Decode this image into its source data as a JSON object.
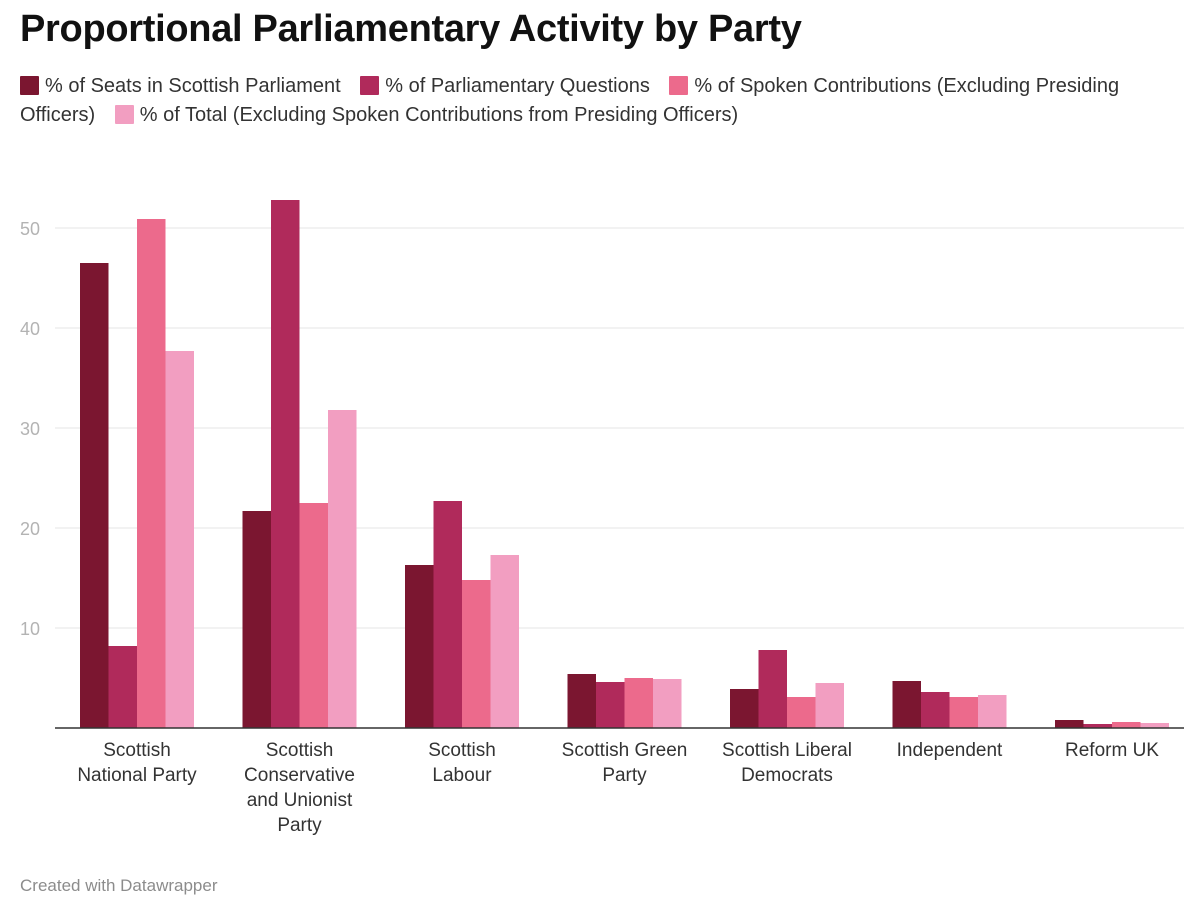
{
  "chart_data": {
    "type": "bar",
    "title": "Proportional Parliamentary Activity by Party",
    "categories": [
      "Scottish National Party",
      "Scottish Conservative and Unionist Party",
      "Scottish Labour",
      "Scottish Green Party",
      "Scottish Liberal Democrats",
      "Independent",
      "Reform UK"
    ],
    "series": [
      {
        "name": "% of Seats in Scottish Parliament",
        "color": "#7b1630",
        "values": [
          46.5,
          21.7,
          16.3,
          5.4,
          3.9,
          4.7,
          0.8
        ]
      },
      {
        "name": "% of Parliamentary Questions",
        "color": "#b02a5b",
        "values": [
          8.2,
          52.8,
          22.7,
          4.6,
          7.8,
          3.6,
          0.4
        ]
      },
      {
        "name": "% of Spoken Contributions (Excluding Presiding Officers)",
        "color": "#ec6a8c",
        "values": [
          50.9,
          22.5,
          14.8,
          5.0,
          3.1,
          3.1,
          0.6
        ]
      },
      {
        "name": "% of Total (Excluding Spoken Contributions from Presiding Officers)",
        "color": "#f29ec1",
        "values": [
          37.7,
          31.8,
          17.3,
          4.9,
          4.5,
          3.3,
          0.5
        ]
      }
    ],
    "y_ticks": [
      10,
      20,
      30,
      40,
      50
    ],
    "ylim": [
      0,
      55
    ],
    "grid": true,
    "legend_position": "top"
  },
  "footer": "Created with Datawrapper"
}
